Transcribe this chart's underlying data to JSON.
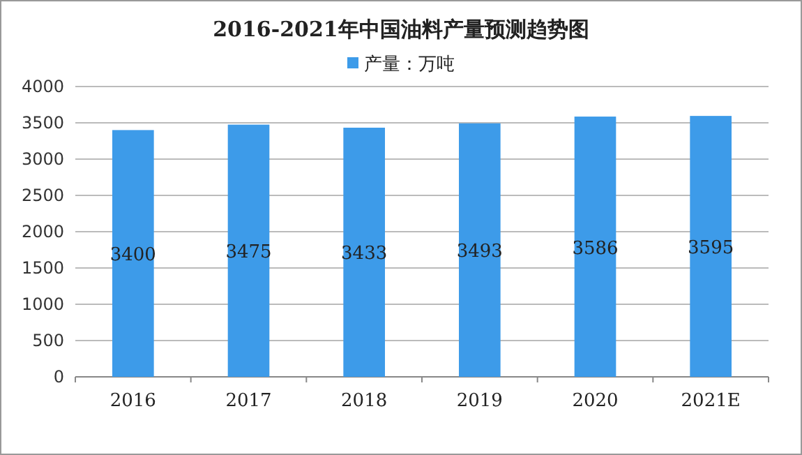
{
  "chart_data": {
    "type": "bar",
    "title": "2016-2021年中国油料产量预测趋势图",
    "categories": [
      "2016",
      "2017",
      "2018",
      "2019",
      "2020",
      "2021E"
    ],
    "series": [
      {
        "name": "产量：万吨",
        "color": "#3d9be9",
        "values": [
          3400,
          3475,
          3433,
          3493,
          3586,
          3595
        ]
      }
    ],
    "ylim": [
      0,
      4000
    ],
    "yticks": [
      0,
      500,
      1000,
      1500,
      2000,
      2500,
      3000,
      3500,
      4000
    ],
    "grid": "y",
    "legend": "top",
    "data_labels": true
  }
}
